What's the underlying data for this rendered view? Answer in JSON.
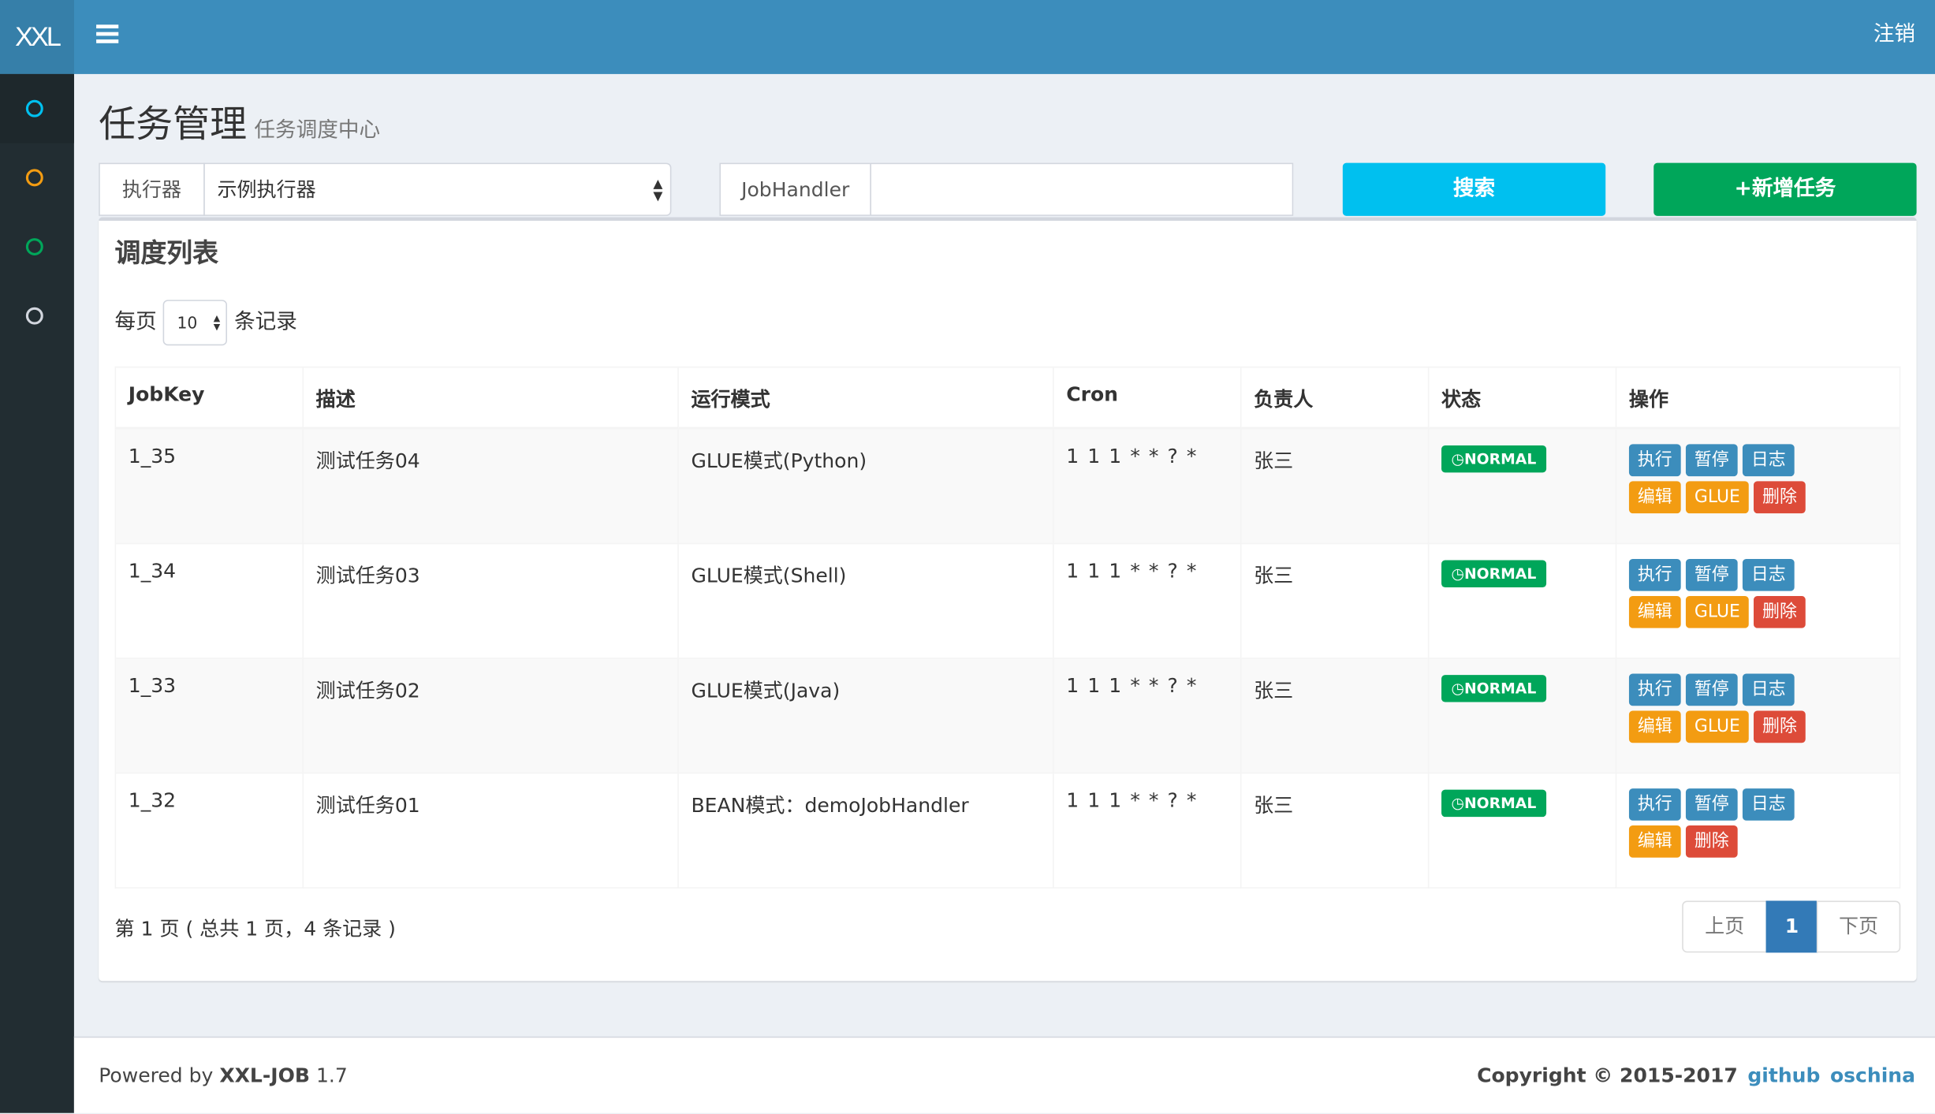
{
  "header": {
    "logo": "XXL",
    "logout": "注销"
  },
  "sidebar": {
    "items": [
      {
        "icon": "circle-icon",
        "color": "#00c0ef"
      },
      {
        "icon": "circle-icon",
        "color": "#f39c12"
      },
      {
        "icon": "circle-icon",
        "color": "#00a65a"
      },
      {
        "icon": "circle-icon",
        "color": "#d2d6de"
      }
    ]
  },
  "page": {
    "title": "任务管理",
    "subtitle": "任务调度中心"
  },
  "filters": {
    "executor_label": "执行器",
    "executor_value": "示例执行器",
    "handler_label": "JobHandler",
    "handler_value": "",
    "search": "搜索",
    "add": "+新增任务"
  },
  "box": {
    "title": "调度列表",
    "per_page_prefix": "每页",
    "per_page_value": "10",
    "per_page_suffix": "条记录"
  },
  "table": {
    "columns": [
      "JobKey",
      "描述",
      "运行模式",
      "Cron",
      "负责人",
      "状态",
      "操作"
    ],
    "rows": [
      {
        "key": "1_35",
        "desc": "测试任务04",
        "mode": "GLUE模式(Python)",
        "cron": "1 1 1 * * ? *",
        "owner": "张三",
        "status": "NORMAL",
        "glue": true
      },
      {
        "key": "1_34",
        "desc": "测试任务03",
        "mode": "GLUE模式(Shell)",
        "cron": "1 1 1 * * ? *",
        "owner": "张三",
        "status": "NORMAL",
        "glue": true
      },
      {
        "key": "1_33",
        "desc": "测试任务02",
        "mode": "GLUE模式(Java)",
        "cron": "1 1 1 * * ? *",
        "owner": "张三",
        "status": "NORMAL",
        "glue": true
      },
      {
        "key": "1_32",
        "desc": "测试任务01",
        "mode": "BEAN模式：demoJobHandler",
        "cron": "1 1 1 * * ? *",
        "owner": "张三",
        "status": "NORMAL",
        "glue": false
      }
    ],
    "actions": {
      "run": "执行",
      "pause": "暂停",
      "log": "日志",
      "edit": "编辑",
      "glue": "GLUE",
      "delete": "删除"
    }
  },
  "pagination": {
    "info": "第 1 页 ( 总共 1 页，4 条记录 )",
    "prev": "上页",
    "current": "1",
    "next": "下页"
  },
  "footer": {
    "powered_prefix": "Powered by ",
    "powered_name": "XXL-JOB",
    "version": " 1.7",
    "copyright": "Copyright © 2015-2017",
    "github": "github",
    "oschina": "oschina"
  },
  "colors": {
    "header": "#3c8dbc",
    "sidebar": "#222d32",
    "info": "#00c0ef",
    "success": "#00a65a",
    "warning": "#f39c12",
    "danger": "#dd4b39"
  }
}
